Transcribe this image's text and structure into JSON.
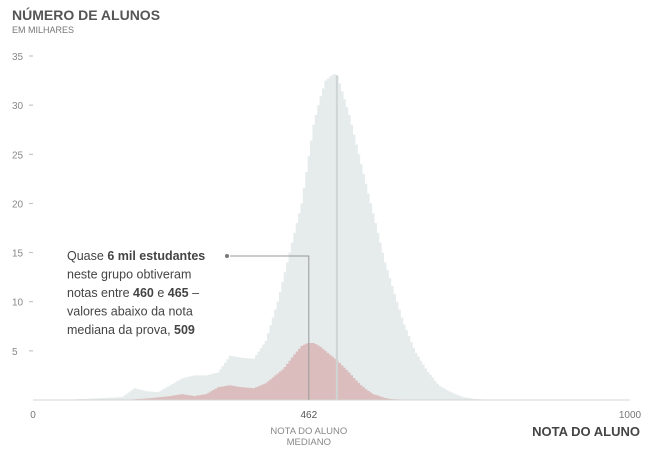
{
  "chart_data": {
    "type": "area",
    "title": "NÚMERO DE ALUNOS",
    "subtitle": "EM MILHARES",
    "xlabel": "NOTA DO ALUNO",
    "xlim": [
      0,
      1000
    ],
    "ylim": [
      0,
      35
    ],
    "yticks": [
      5,
      10,
      15,
      20,
      25,
      30,
      35
    ],
    "xticks": [
      {
        "value": 0,
        "label": "0"
      },
      {
        "value": 462,
        "label": "462"
      },
      {
        "value": 1000,
        "label": "1000"
      }
    ],
    "highlight_tick_label": [
      "NOTA DO ALUNO",
      "MEDIANO"
    ],
    "median_line_x": 509,
    "series": [
      {
        "color": "#e6ecec",
        "x": [
          50,
          150,
          170,
          190,
          210,
          230,
          250,
          270,
          290,
          310,
          330,
          350,
          370,
          390,
          410,
          430,
          450,
          460,
          470,
          480,
          490,
          500,
          505,
          510,
          520,
          530,
          540,
          550,
          560,
          570,
          580,
          590,
          600,
          620,
          640,
          660,
          680,
          700,
          720,
          740,
          760,
          780,
          800,
          850
        ],
        "y": [
          0,
          0.3,
          1.2,
          0.9,
          0.8,
          1.5,
          2.2,
          2.5,
          2.5,
          2.8,
          4.5,
          4.3,
          4.2,
          6,
          10,
          15,
          20,
          24,
          28,
          30.5,
          32.5,
          33,
          33.2,
          33,
          31,
          29,
          26.5,
          24,
          21.5,
          19,
          16.5,
          14,
          12,
          8,
          5,
          3,
          1.5,
          0.8,
          0.3,
          0.1,
          0.05,
          0,
          0,
          0
        ]
      },
      {
        "color": "#dbbdbd",
        "x": [
          150,
          200,
          230,
          250,
          270,
          290,
          310,
          330,
          350,
          370,
          390,
          410,
          420,
          430,
          440,
          450,
          460,
          470,
          480,
          490,
          500,
          510,
          520,
          530,
          540,
          550,
          560,
          570,
          580,
          590,
          600,
          620,
          640,
          660,
          700
        ],
        "y": [
          0,
          0.2,
          0.4,
          0.6,
          0.4,
          0.6,
          1.3,
          1.5,
          1.3,
          1.2,
          1.7,
          2.7,
          3.2,
          4,
          4.8,
          5.5,
          5.8,
          5.8,
          5.5,
          5,
          4.5,
          4,
          3.4,
          2.8,
          2.1,
          1.5,
          1,
          0.6,
          0.4,
          0.2,
          0.1,
          0.05,
          0,
          0,
          0
        ]
      }
    ],
    "annotation": {
      "lines": [
        [
          {
            "t": "Quase "
          },
          {
            "t": "6 mil estudantes",
            "b": true
          }
        ],
        [
          {
            "t": "neste grupo obtiveram"
          }
        ],
        [
          {
            "t": "notas entre "
          },
          {
            "t": "460",
            "b": true
          },
          {
            "t": " e "
          },
          {
            "t": "465",
            "b": true
          },
          {
            "t": " –"
          }
        ],
        [
          {
            "t": "valores abaixo da nota"
          }
        ],
        [
          {
            "t": "mediana da prova, "
          },
          {
            "t": "509",
            "b": true
          }
        ]
      ],
      "target_x": 462,
      "target_y": 5.8
    }
  }
}
